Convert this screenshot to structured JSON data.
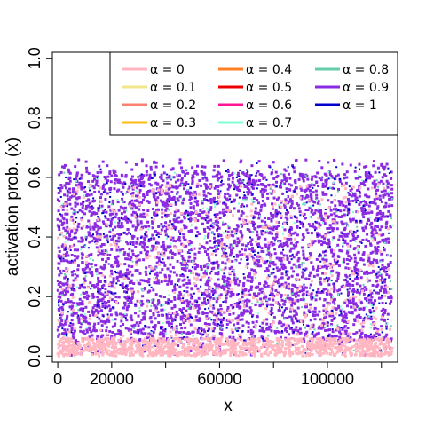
{
  "chart_data": {
    "type": "scatter",
    "title": "",
    "xlabel": "x",
    "ylabel": "activation prob. (x)",
    "xlim": [
      -2000,
      126000
    ],
    "ylim": [
      -0.02,
      1.02
    ],
    "x_ticks": [
      0,
      20000,
      40000,
      60000,
      80000,
      100000,
      120000
    ],
    "x_tick_labels": [
      "0",
      "20000",
      "",
      "60000",
      "",
      "100000",
      ""
    ],
    "y_ticks": [
      0.0,
      0.2,
      0.4,
      0.6,
      0.8,
      1.0
    ],
    "y_tick_labels": [
      "0.0",
      "0.2",
      "0.4",
      "0.6",
      "0.8",
      "1.0"
    ],
    "grid": false,
    "legend_position": "top-right",
    "x_range_of_points": [
      0,
      124000
    ],
    "series": [
      {
        "name": "α = 0",
        "color": "#ffb6c1",
        "density_band": [
          0.0,
          0.06
        ],
        "spread_max": 0.58
      },
      {
        "name": "α = 0.1",
        "color": "#f0e68c",
        "density_band": [
          0.0,
          0.05
        ],
        "spread_max": 0.3
      },
      {
        "name": "α = 0.2",
        "color": "#fa8072",
        "density_band": [
          0.0,
          0.05
        ],
        "spread_max": 0.3
      },
      {
        "name": "α = 0.3",
        "color": "#ffb90f",
        "density_band": [
          0.0,
          0.05
        ],
        "spread_max": 0.3
      },
      {
        "name": "α = 0.4",
        "color": "#ff7f24",
        "density_band": [
          0.0,
          0.05
        ],
        "spread_max": 0.3
      },
      {
        "name": "α = 0.5",
        "color": "#ee0000",
        "density_band": [
          0.0,
          0.05
        ],
        "spread_max": 0.3
      },
      {
        "name": "α = 0.6",
        "color": "#ff1493",
        "density_band": [
          0.0,
          0.05
        ],
        "spread_max": 0.3
      },
      {
        "name": "α = 0.7",
        "color": "#7fffd4",
        "density_band": [
          0.05,
          0.62
        ],
        "spread_max": 0.62
      },
      {
        "name": "α = 0.8",
        "color": "#66cdaa",
        "density_band": [
          0.05,
          0.62
        ],
        "spread_max": 0.62
      },
      {
        "name": "α = 0.9",
        "color": "#8a2be2",
        "density_band": [
          0.05,
          0.62
        ],
        "spread_max": 0.66
      },
      {
        "name": "α = 1",
        "color": "#0000cd",
        "density_band": [
          0.05,
          0.64
        ],
        "spread_max": 0.65
      }
    ]
  }
}
